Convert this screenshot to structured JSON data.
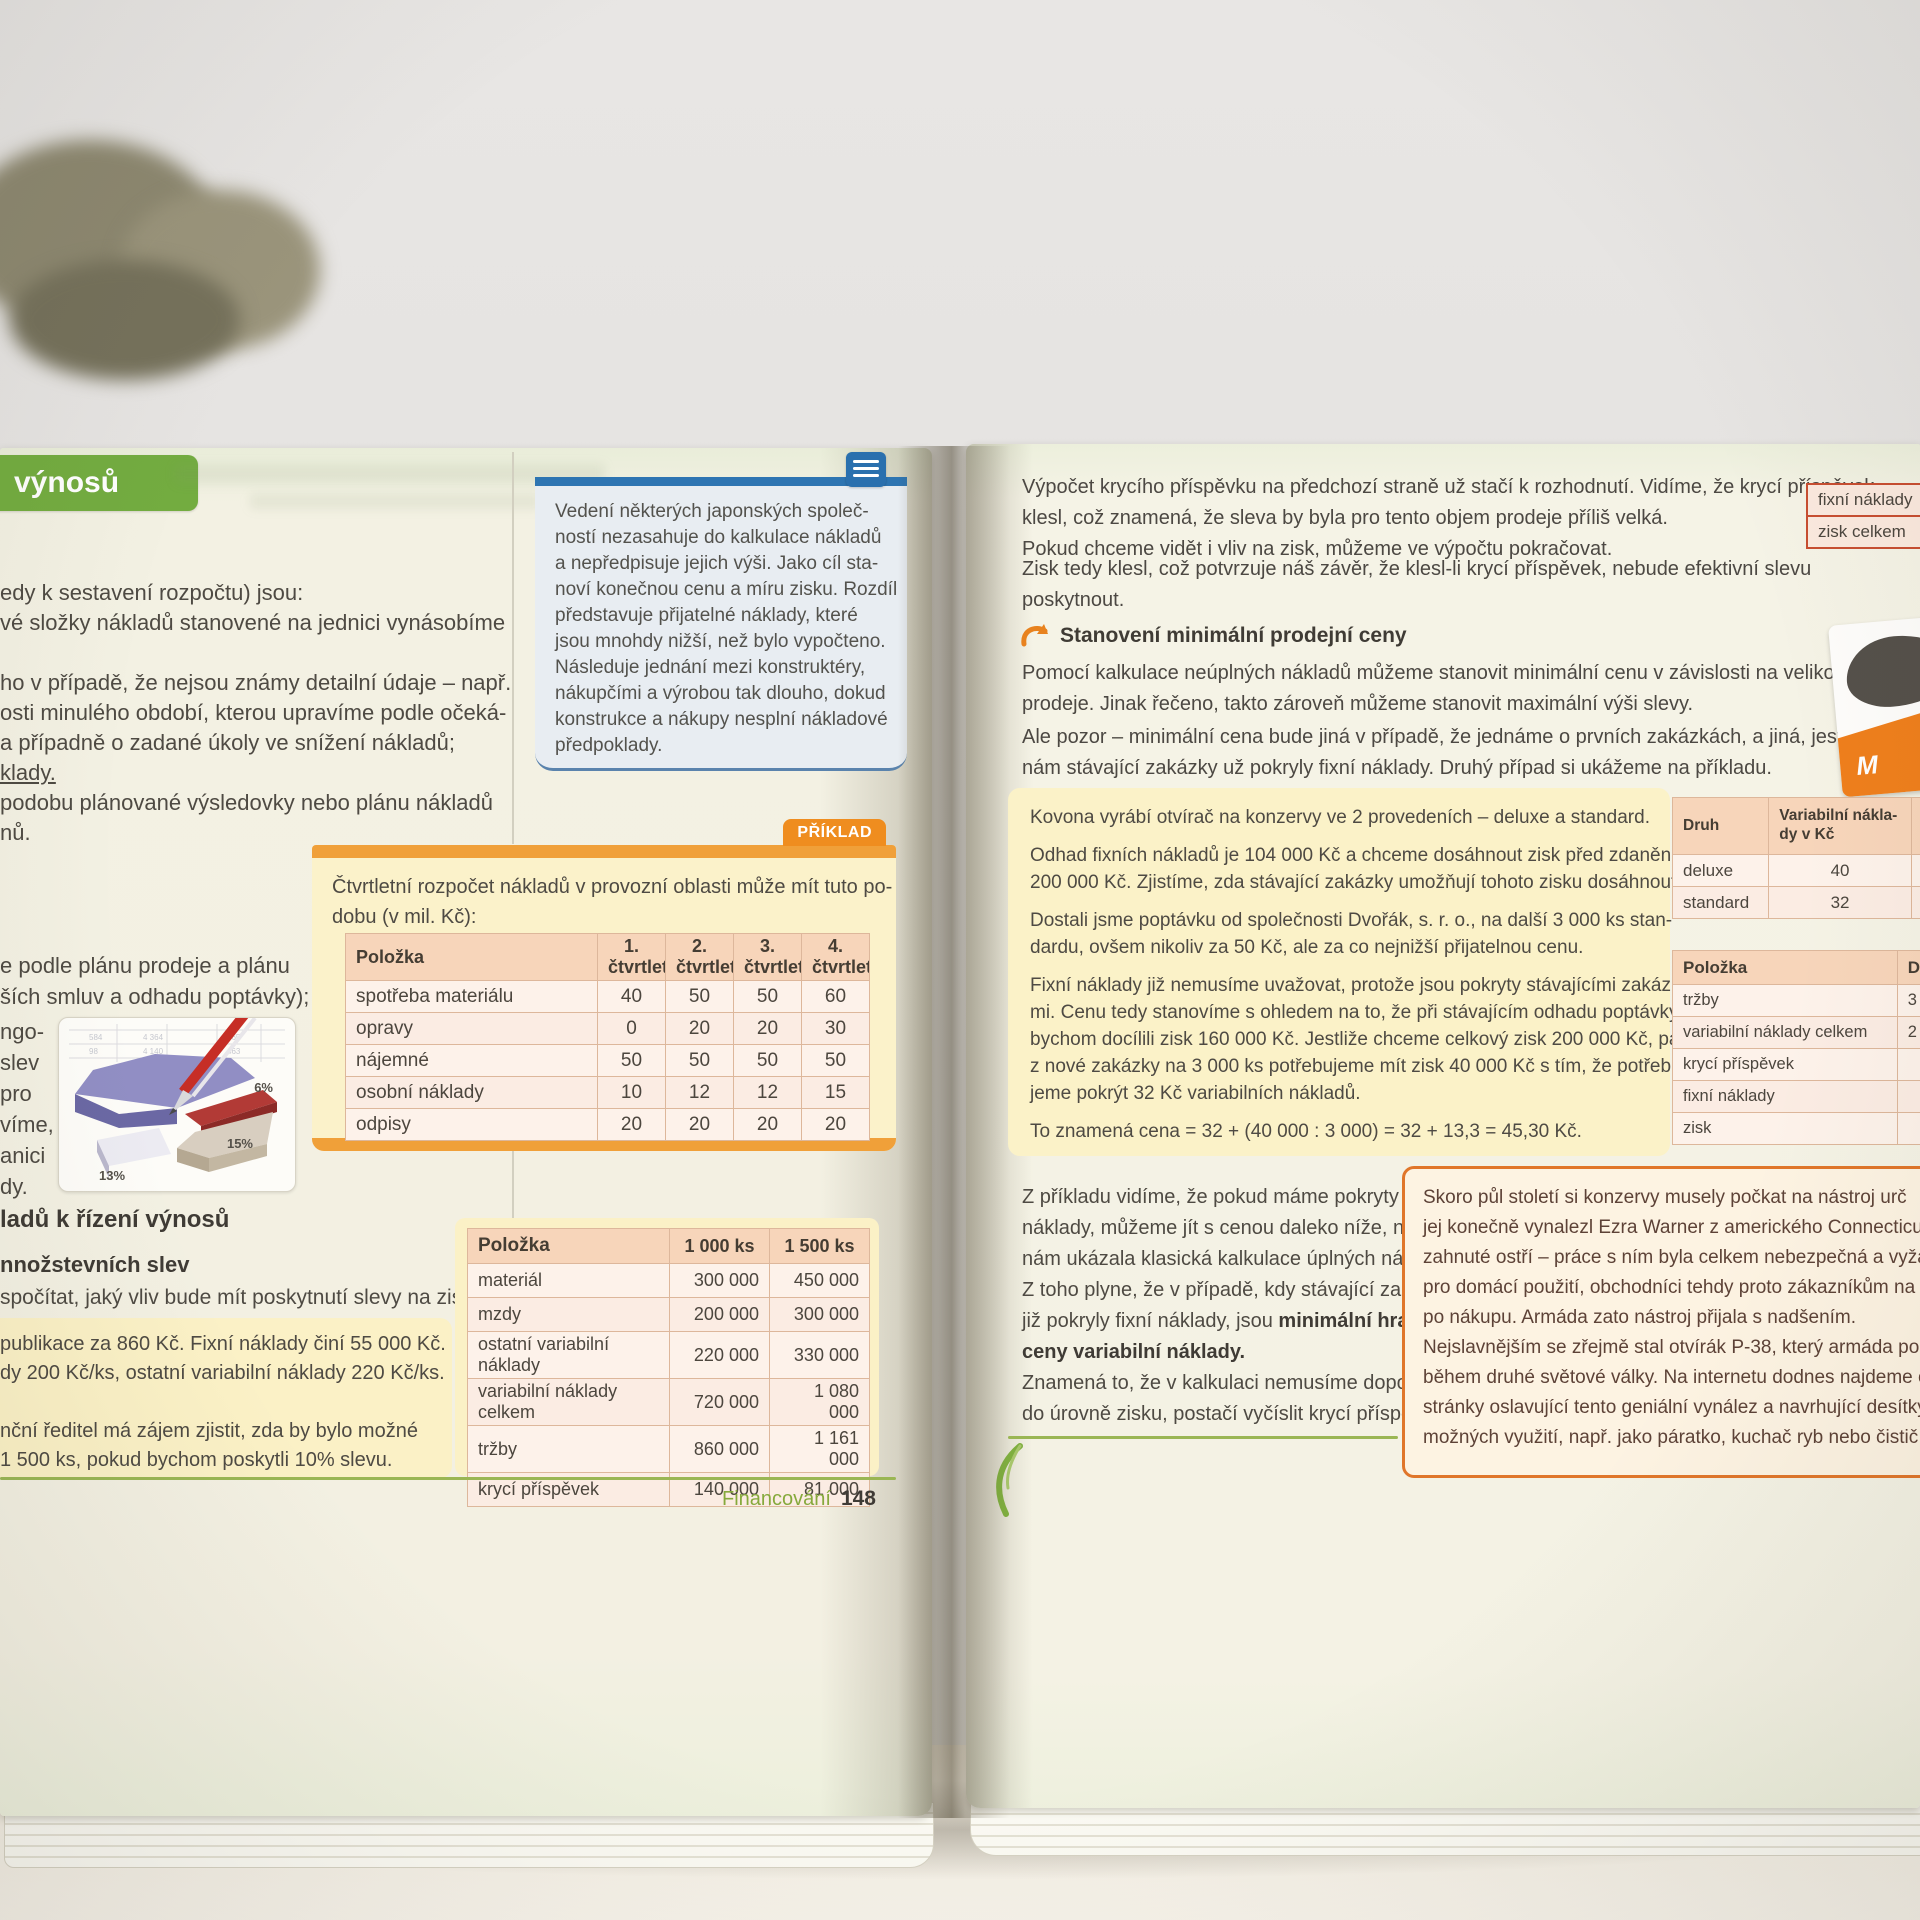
{
  "colors": {
    "accent_green": "#73ac40",
    "accent_orange": "#f0a039",
    "accent_blue": "#2e75b2",
    "rule_green": "#9ab654",
    "table_header_bg": "#f7d5ba",
    "history_border": "#e0762a"
  },
  "left_page": {
    "badge": "výnosů",
    "intro_lines": [
      "edy k sestavení rozpočtu) jsou:",
      "vé složky nákladů stanovené na jednici vynásobíme"
    ],
    "body_lines": [
      "ho v případě, že nejsou známy detailní údaje – např.",
      "osti minulého období, kterou upravíme podle očeká-",
      "a případně o zadané úkoly ve snížení nákladů;",
      {
        "text": "klady.",
        "underline": true
      },
      "podobu plánované výsledovky nebo plánu nákladů",
      "nů."
    ],
    "plan_lines": [
      "e podle plánu prodeje a plánu",
      "ších smluv a odhadu poptávky);"
    ],
    "wrap_fragments": [
      "ngo-",
      "slev",
      "pro",
      "víme,",
      "anici",
      "dy."
    ],
    "pie_image": {
      "labels": [
        "6%",
        "15%",
        "13%"
      ]
    },
    "heading": "ladů k řízení výnosů",
    "subheading": "nnožstevních slev",
    "impact_line": "spočítat, jaký vliv bude mít poskytnutí slevy na zisk.",
    "margin_note": {
      "lines": [
        "Vedení některých japonských společ-",
        "ností nezasahuje do kalkulace nákladů",
        "a nepředpisuje jejich výši. Jako cíl sta-",
        "noví konečnou cenu a míru zisku. Rozdíl",
        "představuje přijatelné náklady, které",
        "jsou mnohdy nižší, než bylo vypočteno.",
        "Následuje jednání mezi konstruktéry,",
        "nákupčími a výrobou tak dlouho, dokud",
        "konstrukce a nákupy nesplní nákladové",
        "předpoklady."
      ]
    },
    "example_box": {
      "tag": "PŘÍKLAD",
      "intro_lines": [
        "Čtvrtletní rozpočet nákladů v provozní oblasti může mít tuto po-",
        "dobu (v mil. Kč):"
      ],
      "table": {
        "headers": [
          "Položka",
          "1. čtvrtletí",
          "2. čtvrtletí",
          "3. čtvrtletí",
          "4. čtvrtletí"
        ],
        "rows": [
          [
            "spotřeba materiálu",
            "40",
            "50",
            "50",
            "60"
          ],
          [
            "opravy",
            "0",
            "20",
            "20",
            "30"
          ],
          [
            "nájemné",
            "50",
            "50",
            "50",
            "50"
          ],
          [
            "osobní náklady",
            "10",
            "12",
            "12",
            "15"
          ],
          [
            "odpisy",
            "20",
            "20",
            "20",
            "20"
          ]
        ]
      }
    },
    "discount_box_lines": [
      "publikace za 860 Kč. Fixní náklady činí 55 000 Kč.",
      "dy 200 Kč/ks, ostatní variabilní náklady 220 Kč/ks.",
      "",
      "nční ředitel má zájem zjistit, zda by bylo možné",
      "1 500 ks, pokud bychom poskytli 10% slevu."
    ],
    "cost_table": {
      "headers": [
        "Položka",
        "1 000 ks",
        "1 500 ks"
      ],
      "rows": [
        [
          "materiál",
          "300 000",
          "450 000"
        ],
        [
          "mzdy",
          "200 000",
          "300 000"
        ],
        [
          "ostatní variabilní náklady",
          "220 000",
          "330 000"
        ],
        [
          "variabilní náklady celkem",
          "720 000",
          "1 080 000"
        ],
        [
          "tržby",
          "860 000",
          "1 161 000"
        ],
        [
          "krycí příspěvek",
          "140 000",
          "81 000"
        ]
      ]
    },
    "footer": {
      "label": "Financování",
      "page": "148"
    }
  },
  "right_page": {
    "para1_lines": [
      "Výpočet krycího příspěvku na předchozí straně už stačí k rozhodnutí. Vidíme, že krycí příspěvek",
      "klesl, což znamená, že sleva by byla pro tento objem prodeje příliš velká.",
      "Pokud chceme vidět i vliv na zisk, můžeme ve výpočtu pokračovat."
    ],
    "para2_lines": [
      "Zisk tedy klesl, což potvrzuje náš závěr, že klesl-li krycí příspěvek, nebude efektivní slevu",
      "poskytnout."
    ],
    "section_heading": "Stanovení minimální prodejní ceny",
    "para3_lines": [
      "Pomocí kalkulace neúplných nákladů můžeme stanovit minimální cenu v závislosti na velikosti",
      "prodeje. Jinak řečeno, takto zároveň můžeme stanovit maximální výši slevy."
    ],
    "para4_lines": [
      "Ale pozor – minimální cena bude jiná v případě, že jednáme o prvních zakázkách, a jiná, jestliže",
      "nám stávající zakázky už pokryly fixní náklady. Druhý případ si ukážeme na příkladu."
    ],
    "example_lines": [
      "Kovona vyrábí otvírač na konzervy ve 2 provedeních – deluxe a standard.",
      "",
      "Odhad fixních nákladů je 104 000 Kč a chceme dosáhnout zisk před zdaněním",
      "200 000 Kč. Zjistíme, zda stávající zakázky umožňují tohoto zisku dosáhnout.",
      "",
      "Dostali jsme poptávku od společnosti Dvořák, s. r. o., na další 3 000 ks stan-",
      "dardu, ovšem nikoliv za 50 Kč, ale za co nejnižší přijatelnou cenu.",
      "",
      "Fixní náklady již nemusíme uvažovat, protože jsou pokryty stávajícími zakázka-",
      "mi. Cenu tedy stanovíme s ohledem na to, že při stávajícím odhadu poptávky",
      "bychom docílili zisk 160 000 Kč. Jestliže chceme celkový zisk 200 000 Kč, pak",
      "z nové zakázky na 3 000 ks potřebujeme mít zisk 40 000 Kč s tím, že potřebu-",
      "jeme pokrýt 32 Kč variabilních nákladů.",
      "",
      "To znamená cena = 32 + (40 000 : 3 000) = 32 + 13,3 = 45,30 Kč."
    ],
    "conclusion_lines": [
      "Z příkladu vidíme, že pokud máme pokryty fixní",
      "náklady, můžeme jít s cenou daleko níže, než by",
      "nám ukázala klasická kalkulace úplných nákladů.",
      "Z toho plyne, že v případě, kdy stávající zakázky",
      {
        "text": "již pokryly fixní náklady, jsou ",
        "bold": "minimální hranicí"
      },
      {
        "bold": "ceny variabilní náklady."
      },
      "Znamená to, že v kalkulaci nemusíme dopočítávat",
      "do úrovně zisku, postačí vyčíslit krycí příspěvek."
    ],
    "history_lines": [
      "Skoro půl století si konzervy musely počkat na nástroj urč",
      "jej konečně vynalezl Ezra Warner z amerického Connecticut",
      "zahnuté ostří – práce s ním byla celkem nebezpečná a vyža",
      "pro domácí použití, obchodníci tehdy proto zákazníkům na",
      "po nákupu. Armáda zato nástroj přijala s nadšením.",
      "Nejslavnějším se zřejmě stal otvírák P-38, který armáda použí",
      "během druhé světové války. Na internetu dodnes najdeme c",
      "stránky oslavující tento geniální vynález a navrhující desítky dal",
      "možných využití, např. jako páratko, kuchač ryb nebo čistič ne"
    ],
    "side": {
      "cells": [
        "fixní náklady",
        "zisk celkem"
      ],
      "photo_letter": "M",
      "druh_table": {
        "headers": [
          "Druh",
          "Variabilní nákla-\ndy v Kč",
          "P"
        ],
        "rows": [
          [
            "deluxe",
            "40",
            ""
          ],
          [
            "standard",
            "32",
            ""
          ]
        ]
      },
      "polozka_table": {
        "headers": [
          "Položka",
          "D"
        ],
        "rows": [
          [
            "tržby",
            "3"
          ],
          [
            "variabilní náklady celkem",
            "2"
          ],
          [
            "krycí příspěvek",
            ""
          ],
          [
            "fixní náklady",
            ""
          ],
          [
            "zisk",
            ""
          ]
        ]
      }
    }
  }
}
